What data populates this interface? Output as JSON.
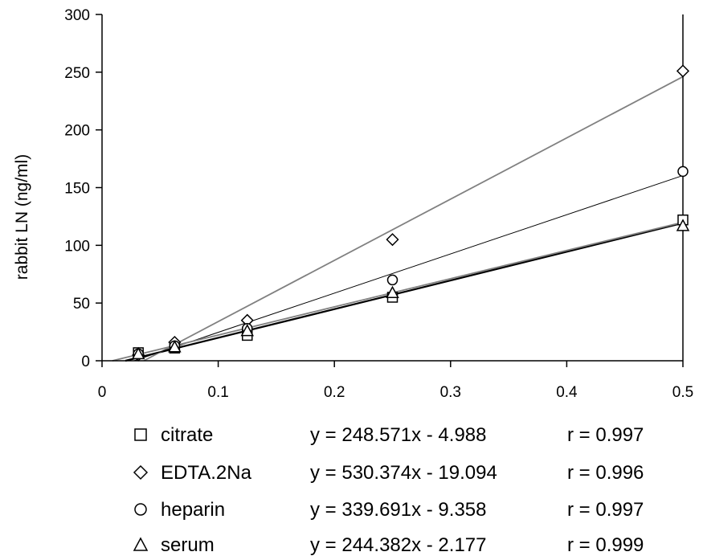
{
  "chart_data": {
    "type": "scatter",
    "title": "",
    "xlabel": "",
    "ylabel": "rabbit LN (ng/ml)",
    "xlim": [
      0,
      0.5
    ],
    "ylim": [
      0,
      300
    ],
    "xticks": [
      "0",
      "0.1",
      "0.2",
      "0.3",
      "0.4",
      "0.5"
    ],
    "yticks": [
      "0",
      "50",
      "100",
      "150",
      "200",
      "250",
      "300"
    ],
    "grid": false,
    "legend_position": "bottom",
    "series": [
      {
        "name": "citrate",
        "marker": "square",
        "equation": "y = 248.571x - 4.988",
        "r": "r = 0.997",
        "slope": 248.571,
        "intercept": -4.988,
        "line_color": "#000000",
        "points": [
          [
            0.03125,
            7
          ],
          [
            0.0625,
            11
          ],
          [
            0.125,
            22
          ],
          [
            0.25,
            55
          ],
          [
            0.5,
            122
          ]
        ]
      },
      {
        "name": "EDTA.2Na",
        "marker": "diamond",
        "equation": "y = 530.374x - 19.094",
        "r": "r = 0.996",
        "slope": 530.374,
        "intercept": -19.094,
        "line_color": "#808080",
        "points": [
          [
            0.03125,
            5
          ],
          [
            0.0625,
            16
          ],
          [
            0.125,
            35
          ],
          [
            0.25,
            105
          ],
          [
            0.5,
            251
          ]
        ]
      },
      {
        "name": "heparin",
        "marker": "circle",
        "equation": "y = 339.691x - 9.358",
        "r": "r = 0.997",
        "slope": 339.691,
        "intercept": -9.358,
        "line_color": "#000000",
        "points": [
          [
            0.03125,
            6
          ],
          [
            0.0625,
            13
          ],
          [
            0.125,
            28
          ],
          [
            0.25,
            70
          ],
          [
            0.5,
            164
          ]
        ]
      },
      {
        "name": "serum",
        "marker": "triangle",
        "equation": "y = 244.382x - 2.177",
        "r": "r = 0.999",
        "slope": 244.382,
        "intercept": -2.177,
        "line_color": "#808080",
        "points": [
          [
            0.03125,
            6
          ],
          [
            0.0625,
            12
          ],
          [
            0.125,
            26
          ],
          [
            0.25,
            59
          ],
          [
            0.5,
            117
          ]
        ]
      }
    ]
  }
}
